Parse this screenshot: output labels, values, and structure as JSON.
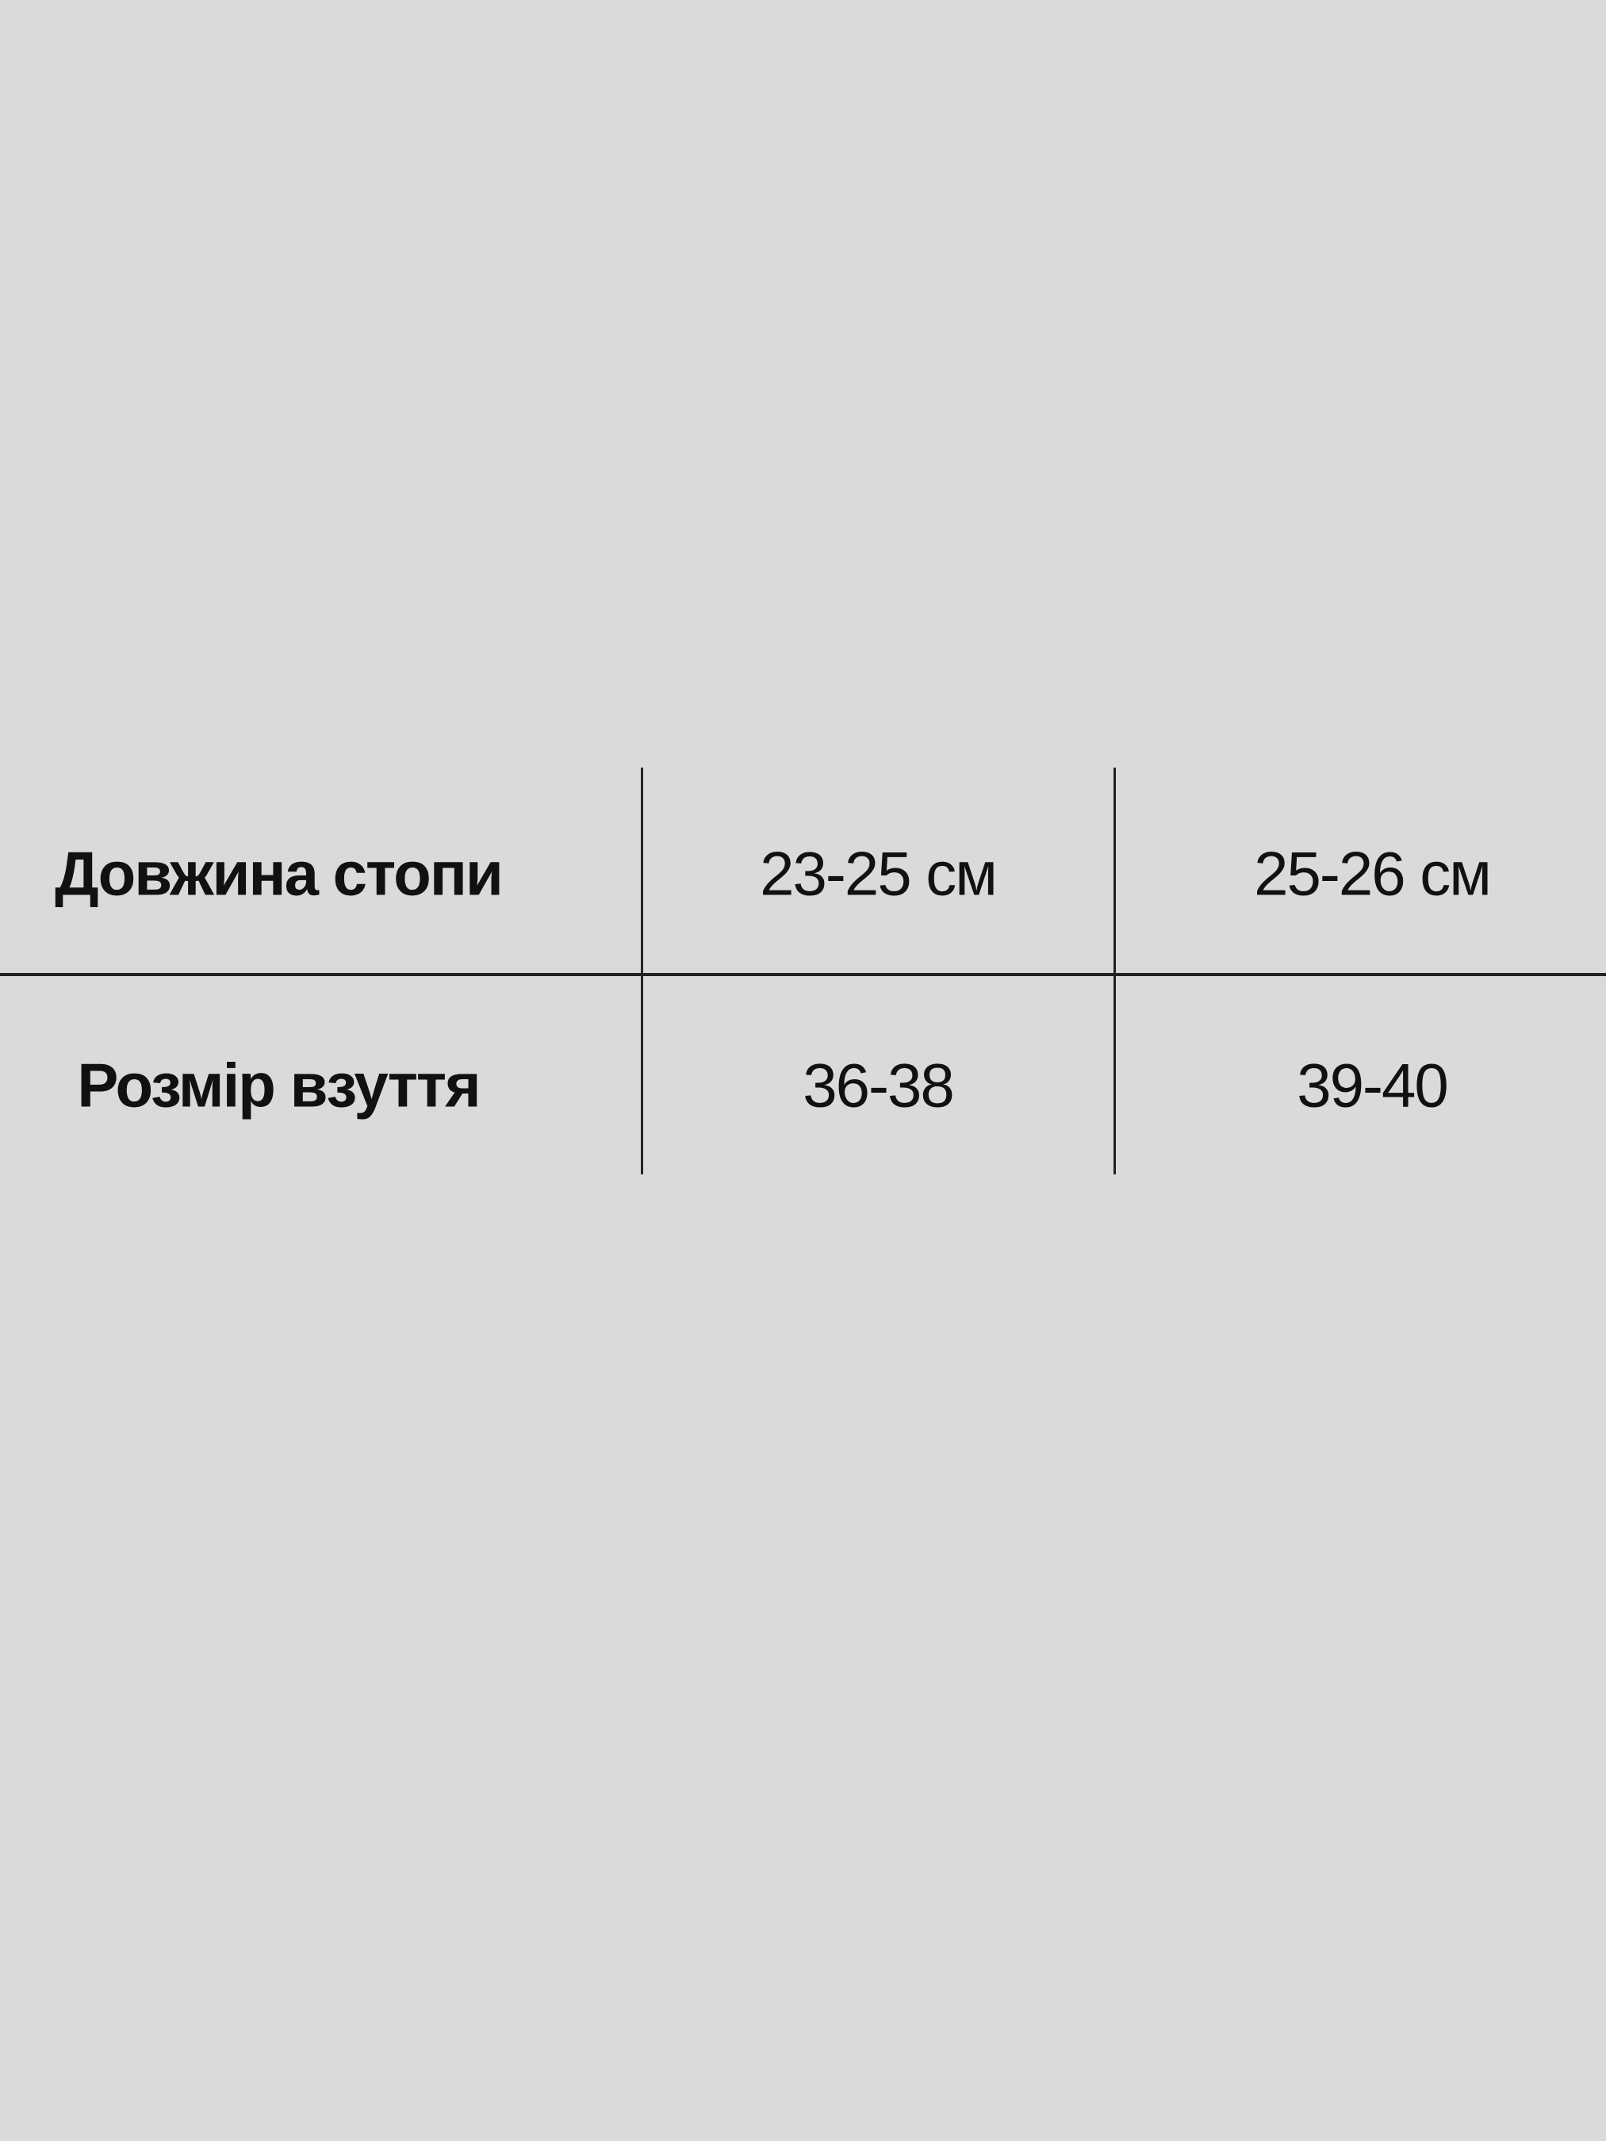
{
  "table": {
    "rows": [
      {
        "label": "Довжина стопи",
        "values": [
          "23-25 см",
          "25-26 см"
        ]
      },
      {
        "label": "Розмір взуття",
        "values": [
          "36-38",
          "39-40"
        ]
      }
    ]
  },
  "colors": {
    "background": "#dadada",
    "text": "#111111",
    "lines": "#222222"
  }
}
